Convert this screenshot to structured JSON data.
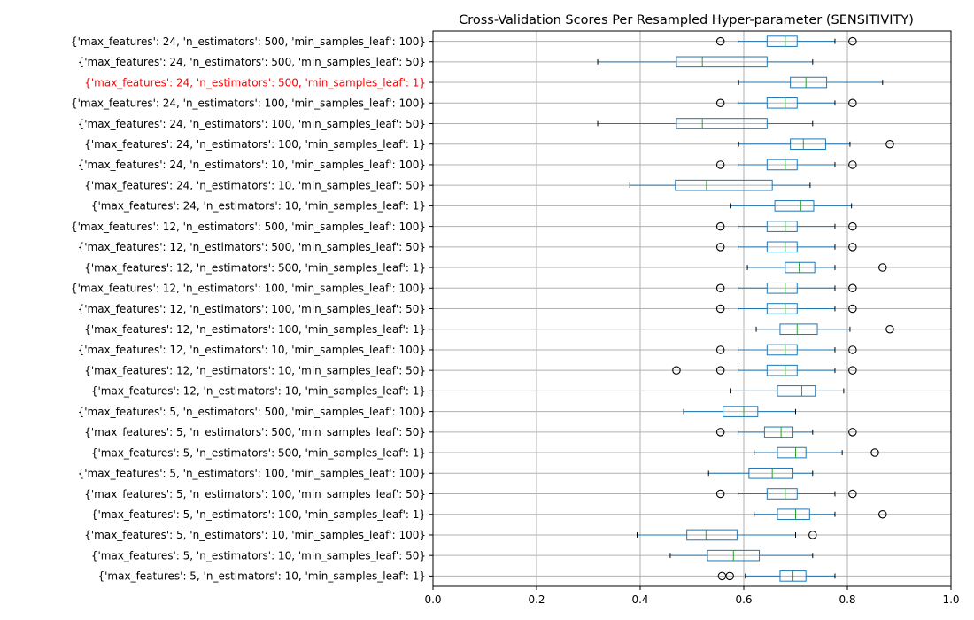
{
  "chart_data": {
    "type": "boxplot",
    "orientation": "horizontal",
    "title": "Cross-Validation Scores Per Resampled Hyper-parameter (SENSITIVITY)",
    "xlabel": "",
    "ylabel": "",
    "xlim": [
      0.0,
      1.0
    ],
    "x_ticks": [
      "0.0",
      "0.2",
      "0.4",
      "0.6",
      "0.8",
      "1.0"
    ],
    "grid": true,
    "colors": {
      "box": "#1f77b4",
      "median": "#2ca02c",
      "grid": "#b0b0b0",
      "highlight_label": "#ff0000",
      "label": "#000000"
    },
    "series": [
      {
        "label": "{'max_features': 24, 'n_estimators': 500, 'min_samples_leaf': 100}",
        "whisker_low": 0.589,
        "q1": 0.645,
        "median": 0.68,
        "q3": 0.703,
        "whisker_high": 0.776,
        "outliers": [
          0.555,
          0.81
        ]
      },
      {
        "label": "{'max_features': 24, 'n_estimators': 500, 'min_samples_leaf': 50}",
        "whisker_low": 0.318,
        "q1": 0.47,
        "median": 0.52,
        "q3": 0.645,
        "whisker_high": 0.733,
        "outliers": []
      },
      {
        "label": "{'max_features': 24, 'n_estimators': 500, 'min_samples_leaf': 1}",
        "highlight": true,
        "whisker_low": 0.59,
        "q1": 0.69,
        "median": 0.72,
        "q3": 0.76,
        "whisker_high": 0.868,
        "outliers": []
      },
      {
        "label": "{'max_features': 24, 'n_estimators': 100, 'min_samples_leaf': 100}",
        "whisker_low": 0.589,
        "q1": 0.645,
        "median": 0.68,
        "q3": 0.703,
        "whisker_high": 0.776,
        "outliers": [
          0.555,
          0.81
        ]
      },
      {
        "label": "{'max_features': 24, 'n_estimators': 100, 'min_samples_leaf': 50}",
        "whisker_low": 0.318,
        "q1": 0.47,
        "median": 0.52,
        "q3": 0.645,
        "whisker_high": 0.733,
        "outliers": []
      },
      {
        "label": "{'max_features': 24, 'n_estimators': 100, 'min_samples_leaf': 1}",
        "whisker_low": 0.59,
        "q1": 0.69,
        "median": 0.715,
        "q3": 0.758,
        "whisker_high": 0.805,
        "outliers": [
          0.882
        ]
      },
      {
        "label": "{'max_features': 24, 'n_estimators': 10, 'min_samples_leaf': 100}",
        "whisker_low": 0.589,
        "q1": 0.645,
        "median": 0.68,
        "q3": 0.703,
        "whisker_high": 0.776,
        "outliers": [
          0.555,
          0.81
        ]
      },
      {
        "label": "{'max_features': 24, 'n_estimators': 10, 'min_samples_leaf': 50}",
        "whisker_low": 0.38,
        "q1": 0.468,
        "median": 0.528,
        "q3": 0.655,
        "whisker_high": 0.728,
        "outliers": []
      },
      {
        "label": "{'max_features': 24, 'n_estimators': 10, 'min_samples_leaf': 1}",
        "whisker_low": 0.575,
        "q1": 0.66,
        "median": 0.71,
        "q3": 0.735,
        "whisker_high": 0.808,
        "outliers": []
      },
      {
        "label": "{'max_features': 12, 'n_estimators': 500, 'min_samples_leaf': 100}",
        "whisker_low": 0.589,
        "q1": 0.645,
        "median": 0.68,
        "q3": 0.703,
        "whisker_high": 0.776,
        "outliers": [
          0.555,
          0.81
        ]
      },
      {
        "label": "{'max_features': 12, 'n_estimators': 500, 'min_samples_leaf': 50}",
        "whisker_low": 0.589,
        "q1": 0.645,
        "median": 0.68,
        "q3": 0.703,
        "whisker_high": 0.776,
        "outliers": [
          0.555,
          0.81
        ]
      },
      {
        "label": "{'max_features': 12, 'n_estimators': 500, 'min_samples_leaf': 1}",
        "whisker_low": 0.607,
        "q1": 0.68,
        "median": 0.707,
        "q3": 0.737,
        "whisker_high": 0.776,
        "outliers": [
          0.868
        ]
      },
      {
        "label": "{'max_features': 12, 'n_estimators': 100, 'min_samples_leaf': 100}",
        "whisker_low": 0.589,
        "q1": 0.645,
        "median": 0.68,
        "q3": 0.703,
        "whisker_high": 0.776,
        "outliers": [
          0.555,
          0.81
        ]
      },
      {
        "label": "{'max_features': 12, 'n_estimators': 100, 'min_samples_leaf': 50}",
        "whisker_low": 0.589,
        "q1": 0.645,
        "median": 0.68,
        "q3": 0.703,
        "whisker_high": 0.776,
        "outliers": [
          0.555,
          0.81
        ]
      },
      {
        "label": "{'max_features': 12, 'n_estimators': 100, 'min_samples_leaf': 1}",
        "whisker_low": 0.624,
        "q1": 0.67,
        "median": 0.703,
        "q3": 0.742,
        "whisker_high": 0.805,
        "outliers": [
          0.882
        ]
      },
      {
        "label": "{'max_features': 12, 'n_estimators': 10, 'min_samples_leaf': 100}",
        "whisker_low": 0.589,
        "q1": 0.645,
        "median": 0.68,
        "q3": 0.703,
        "whisker_high": 0.776,
        "outliers": [
          0.555,
          0.81
        ]
      },
      {
        "label": "{'max_features': 12, 'n_estimators': 10, 'min_samples_leaf': 50}",
        "whisker_low": 0.589,
        "q1": 0.645,
        "median": 0.68,
        "q3": 0.703,
        "whisker_high": 0.776,
        "outliers": [
          0.47,
          0.555,
          0.81
        ]
      },
      {
        "label": "{'max_features': 12, 'n_estimators': 10, 'min_samples_leaf': 1}",
        "whisker_low": 0.575,
        "q1": 0.665,
        "median": 0.712,
        "q3": 0.738,
        "whisker_high": 0.793,
        "outliers": []
      },
      {
        "label": "{'max_features': 5, 'n_estimators': 500, 'min_samples_leaf': 100}",
        "whisker_low": 0.484,
        "q1": 0.56,
        "median": 0.6,
        "q3": 0.627,
        "whisker_high": 0.7,
        "outliers": []
      },
      {
        "label": "{'max_features': 5, 'n_estimators': 500, 'min_samples_leaf': 50}",
        "whisker_low": 0.589,
        "q1": 0.64,
        "median": 0.672,
        "q3": 0.695,
        "whisker_high": 0.733,
        "outliers": [
          0.555,
          0.81
        ]
      },
      {
        "label": "{'max_features': 5, 'n_estimators': 500, 'min_samples_leaf': 1}",
        "whisker_low": 0.62,
        "q1": 0.665,
        "median": 0.7,
        "q3": 0.72,
        "whisker_high": 0.79,
        "outliers": [
          0.853
        ]
      },
      {
        "label": "{'max_features': 5, 'n_estimators': 100, 'min_samples_leaf': 100}",
        "whisker_low": 0.532,
        "q1": 0.61,
        "median": 0.655,
        "q3": 0.695,
        "whisker_high": 0.733,
        "outliers": []
      },
      {
        "label": "{'max_features': 5, 'n_estimators': 100, 'min_samples_leaf': 50}",
        "whisker_low": 0.589,
        "q1": 0.645,
        "median": 0.68,
        "q3": 0.703,
        "whisker_high": 0.776,
        "outliers": [
          0.555,
          0.81
        ]
      },
      {
        "label": "{'max_features': 5, 'n_estimators': 100, 'min_samples_leaf': 1}",
        "whisker_low": 0.62,
        "q1": 0.665,
        "median": 0.7,
        "q3": 0.727,
        "whisker_high": 0.776,
        "outliers": [
          0.868
        ]
      },
      {
        "label": "{'max_features': 5, 'n_estimators': 10, 'min_samples_leaf': 100}",
        "whisker_low": 0.394,
        "q1": 0.49,
        "median": 0.527,
        "q3": 0.587,
        "whisker_high": 0.7,
        "outliers": [
          0.733
        ]
      },
      {
        "label": "{'max_features': 5, 'n_estimators': 10, 'min_samples_leaf': 50}",
        "whisker_low": 0.458,
        "q1": 0.53,
        "median": 0.58,
        "q3": 0.63,
        "whisker_high": 0.733,
        "outliers": []
      },
      {
        "label": "{'max_features': 5, 'n_estimators': 10, 'min_samples_leaf': 1}",
        "whisker_low": 0.603,
        "q1": 0.67,
        "median": 0.695,
        "q3": 0.72,
        "whisker_high": 0.776,
        "outliers": [
          0.558,
          0.573
        ]
      }
    ]
  }
}
